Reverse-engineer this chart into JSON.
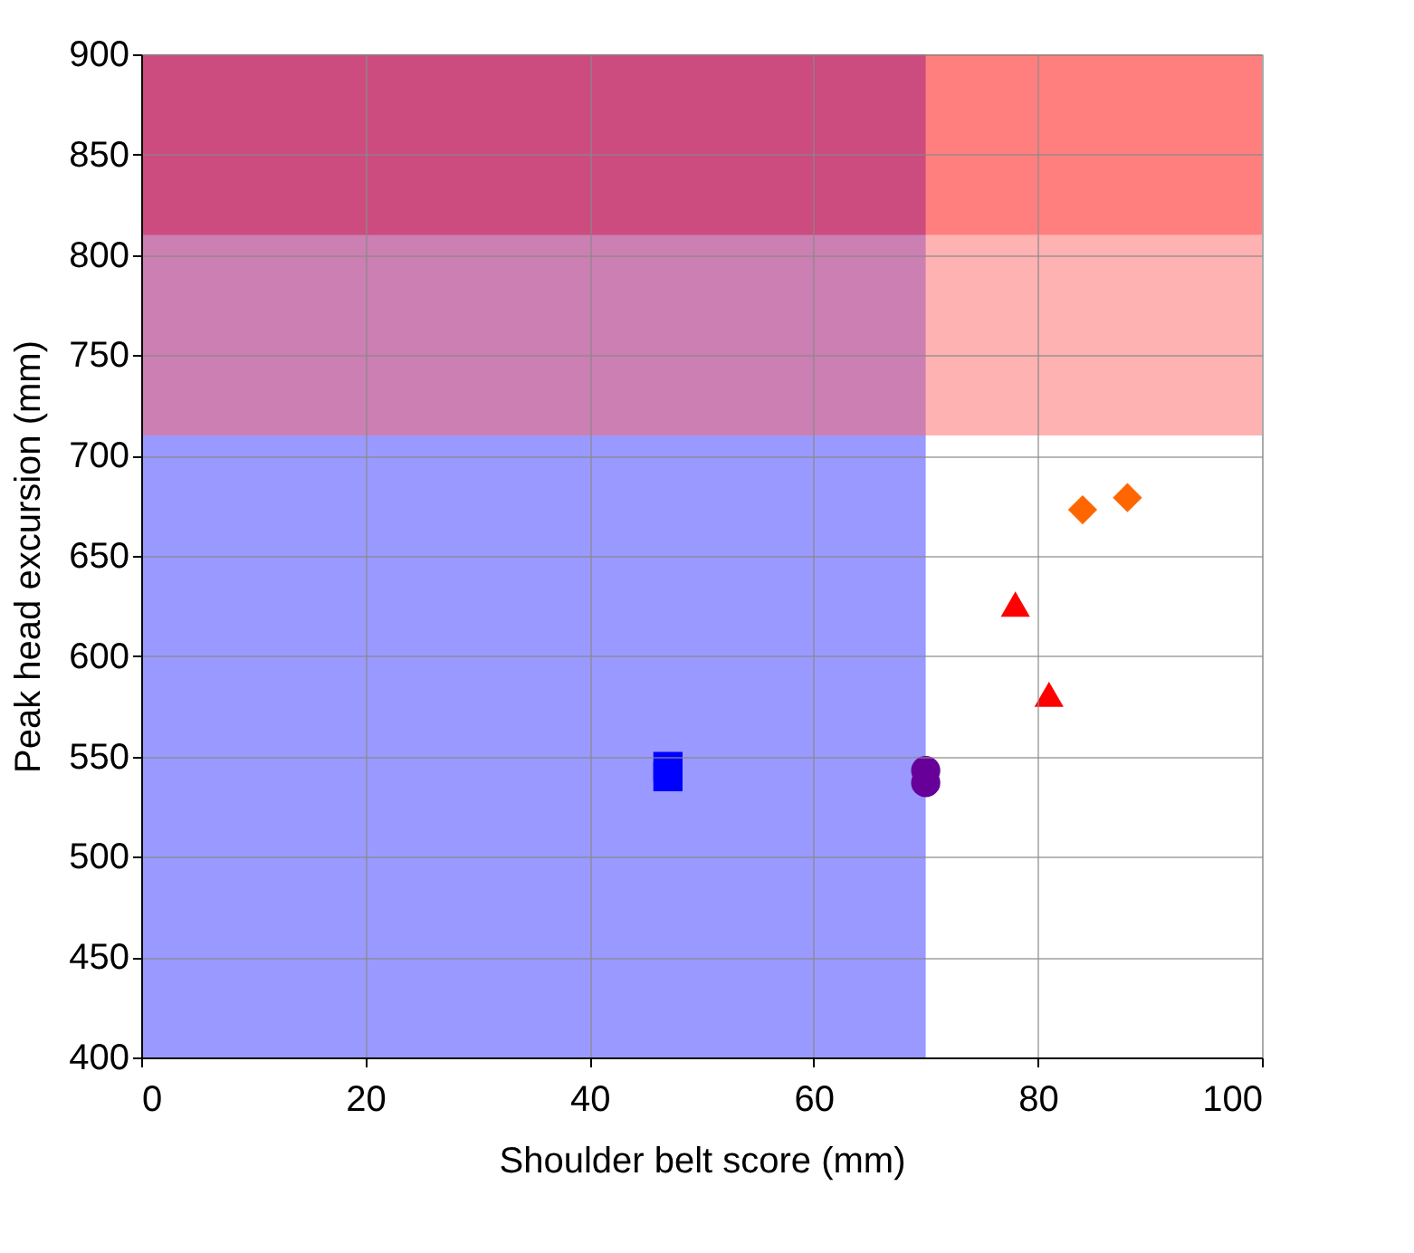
{
  "chart_data": {
    "type": "scatter",
    "xlabel": "Shoulder belt score (mm)",
    "ylabel": "Peak head excursion (mm)",
    "xlim": [
      0,
      100
    ],
    "xticks": [
      0,
      20,
      40,
      60,
      80,
      100
    ],
    "ylim": [
      400,
      900
    ],
    "yticks": [
      400,
      450,
      500,
      550,
      600,
      650,
      700,
      750,
      800,
      850,
      900
    ],
    "grid": true,
    "series": [
      {
        "color": "#0000ff",
        "marker": "square",
        "x": [
          47,
          47
        ],
        "values": [
          540,
          545
        ]
      },
      {
        "color": "#660099",
        "marker": "circle",
        "x": [
          70,
          70
        ],
        "values": [
          537,
          543
        ]
      },
      {
        "color": "#ff0000",
        "marker": "triangle",
        "x": [
          78,
          81
        ],
        "values": [
          626,
          581
        ]
      },
      {
        "color": "#ff6600",
        "marker": "diamond",
        "x": [
          84,
          88
        ],
        "values": [
          673,
          679
        ]
      }
    ],
    "bands": [
      {
        "axis": "x",
        "from": 0,
        "to": 70,
        "color": "#3333ff"
      },
      {
        "axis": "y",
        "from": 710,
        "to": 810,
        "color": "#ff6666"
      },
      {
        "axis": "y",
        "from": 810,
        "to": 900,
        "color": "#ff0000"
      }
    ]
  }
}
